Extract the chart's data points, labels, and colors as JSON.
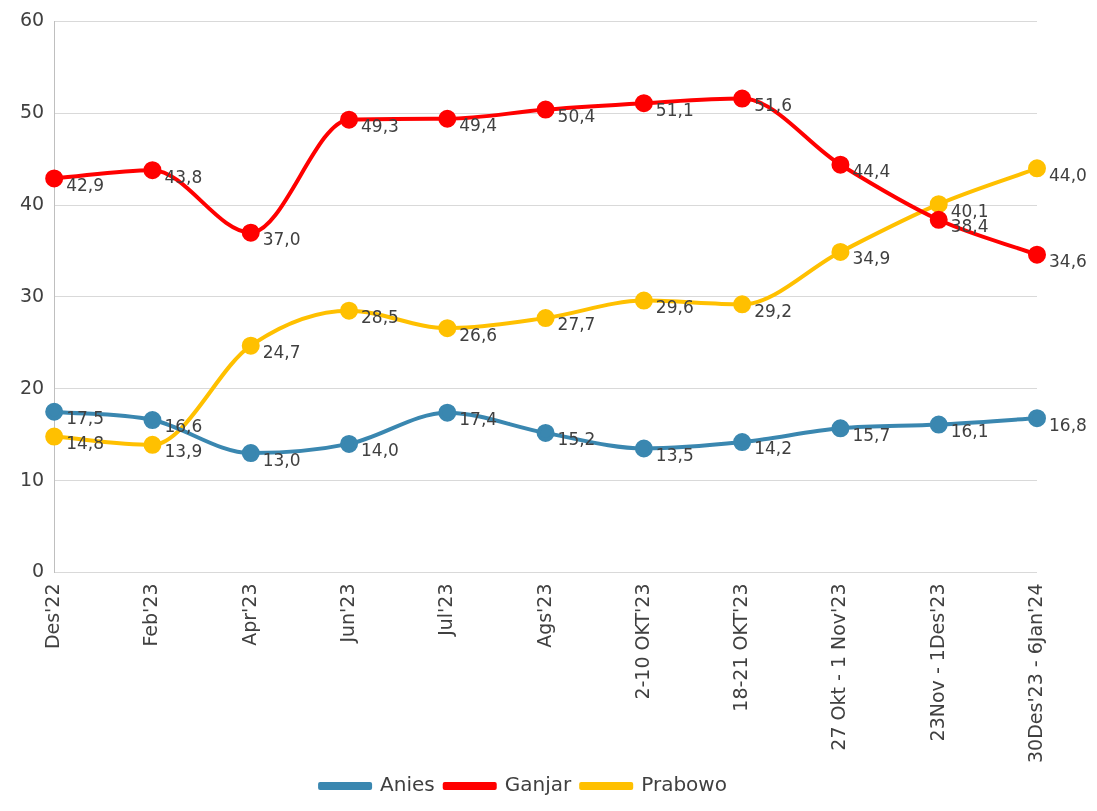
{
  "chart_data": {
    "type": "line",
    "categories": [
      "Des'22",
      "Feb'23",
      "Apr'23",
      "Jun'23",
      "Jul'23",
      "Ags'23",
      "2-10 OKT'23",
      "18-21 OKT'23",
      "27 Okt - 1 Nov'23",
      "23Nov - 1Des'23",
      "30Des'23 - 6Jan'24"
    ],
    "series": [
      {
        "name": "Anies",
        "color": "#3a87b0",
        "values": [
          17.5,
          16.6,
          13.0,
          14.0,
          17.4,
          15.2,
          13.5,
          14.2,
          15.7,
          16.1,
          16.8
        ],
        "value_labels": [
          "17,5",
          "16,6",
          "13,0",
          "14,0",
          "17,4",
          "15,2",
          "13,5",
          "14,2",
          "15,7",
          "16,1",
          "16,8"
        ]
      },
      {
        "name": "Ganjar",
        "color": "#ff0000",
        "values": [
          42.9,
          43.8,
          37.0,
          49.3,
          49.4,
          50.4,
          51.1,
          51.6,
          44.4,
          38.4,
          34.6
        ],
        "value_labels": [
          "42,9",
          "43,8",
          "37,0",
          "49,3",
          "49,4",
          "50,4",
          "51,1",
          "51,6",
          "44,4",
          "38,4",
          "34,6"
        ]
      },
      {
        "name": "Prabowo",
        "color": "#ffc000",
        "values": [
          14.8,
          13.9,
          24.7,
          28.5,
          26.6,
          27.7,
          29.6,
          29.2,
          34.9,
          40.1,
          44.0
        ],
        "value_labels": [
          "14,8",
          "13,9",
          "24,7",
          "28,5",
          "26,6",
          "27,7",
          "29,6",
          "29,2",
          "34,9",
          "40,1",
          "44,0"
        ]
      }
    ],
    "ylim": [
      0,
      60
    ],
    "yticks": [
      0,
      10,
      20,
      30,
      40,
      50,
      60
    ],
    "grid": "y",
    "legend": "bottom",
    "marker": "circle",
    "line_style": "solid"
  }
}
